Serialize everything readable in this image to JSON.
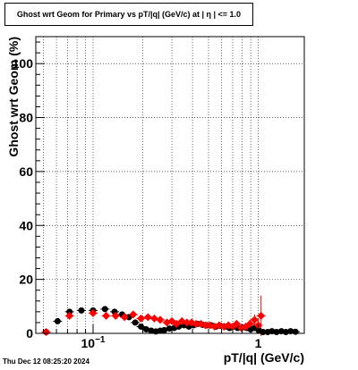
{
  "chart_data": {
    "type": "scatter",
    "title": "Ghost wrt Geom for Primary vs pT/|q| (GeV/c) at |  η  | <= 1.0",
    "xlabel": "pT/|q| (GeV/c)",
    "ylabel": "Ghost wrt Geom (%)",
    "x_scale": "log",
    "xlim": [
      0.045,
      1.9
    ],
    "ylim": [
      0,
      110
    ],
    "x_tick_labels": [
      "10−1",
      "1"
    ],
    "x_tick_values": [
      0.1,
      1
    ],
    "y_tick_labels": [
      "0",
      "20",
      "40",
      "60",
      "80",
      "100"
    ],
    "y_tick_values": [
      0,
      20,
      40,
      60,
      80,
      100
    ],
    "grid": true,
    "series": [
      {
        "color": "#000000",
        "marker": "circle",
        "x": [
          0.052,
          0.061,
          0.072,
          0.085,
          0.1,
          0.118,
          0.135,
          0.15,
          0.165,
          0.18,
          0.195,
          0.21,
          0.225,
          0.24,
          0.255,
          0.27,
          0.29,
          0.31,
          0.33,
          0.355,
          0.38,
          0.405,
          0.43,
          0.46,
          0.49,
          0.52,
          0.555,
          0.59,
          0.63,
          0.67,
          0.71,
          0.75,
          0.8,
          0.85,
          0.9,
          0.95,
          1.01,
          1.07,
          1.14,
          1.21,
          1.29,
          1.38,
          1.47,
          1.57,
          1.68
        ],
        "y": [
          0.5,
          4.5,
          8,
          8.5,
          8.5,
          9,
          8,
          7,
          6,
          4,
          2.5,
          1.5,
          1.0,
          0.7,
          1.0,
          1.2,
          1.8,
          2.0,
          2.5,
          3.0,
          2.5,
          3.0,
          3.5,
          3.2,
          3.0,
          3.0,
          2.5,
          2.8,
          2.5,
          2.0,
          2.5,
          2.0,
          2.2,
          2.0,
          1.5,
          2.0,
          1.0,
          0.5,
          0.5,
          0.8,
          0.5,
          0.8,
          0.5,
          0.8,
          0.6
        ],
        "y_err": [
          0.3,
          0.8,
          0.8,
          0.6,
          0.5,
          0.5,
          0.5,
          0.5,
          0.4,
          0.4,
          0.3,
          0.3,
          0.3,
          0.2,
          0.3,
          0.3,
          0.3,
          0.3,
          0.4,
          0.4,
          0.4,
          0.4,
          0.5,
          0.5,
          0.5,
          0.5,
          0.5,
          0.5,
          0.5,
          0.5,
          0.5,
          0.5,
          0.5,
          0.5,
          0.5,
          0.6,
          0.6,
          0.6,
          0.6,
          0.6,
          0.7,
          0.7,
          0.7,
          0.8,
          0.8
        ]
      },
      {
        "color": "#ff0000",
        "marker": "diamond",
        "x": [
          0.052,
          0.072,
          0.1,
          0.12,
          0.137,
          0.155,
          0.175,
          0.195,
          0.215,
          0.235,
          0.255,
          0.28,
          0.3,
          0.32,
          0.345,
          0.37,
          0.395,
          0.42,
          0.45,
          0.48,
          0.51,
          0.545,
          0.58,
          0.62,
          0.66,
          0.7,
          0.74,
          0.79,
          0.84,
          0.89,
          0.95,
          1.0,
          1.04
        ],
        "y": [
          0.5,
          6.5,
          7.5,
          6.5,
          6.5,
          6,
          7,
          5.5,
          6,
          5.5,
          5,
          4,
          4.5,
          3.5,
          4.5,
          4,
          4,
          3.5,
          3.5,
          3,
          3,
          2.5,
          3,
          2.5,
          3,
          2.5,
          3.5,
          2,
          2.5,
          3.5,
          5,
          3,
          6.5
        ],
        "y_err": [
          0.3,
          0.8,
          0.8,
          0.6,
          0.6,
          0.5,
          0.5,
          0.5,
          0.5,
          0.5,
          0.5,
          0.5,
          0.5,
          0.5,
          0.5,
          0.5,
          0.5,
          0.5,
          0.5,
          0.5,
          0.5,
          0.6,
          0.6,
          0.6,
          0.7,
          0.7,
          0.8,
          0.8,
          1.0,
          1.5,
          2.0,
          2.5,
          7.5
        ]
      }
    ]
  },
  "footer": {
    "timestamp": "Thu Dec 12 08:25:20 2024"
  }
}
